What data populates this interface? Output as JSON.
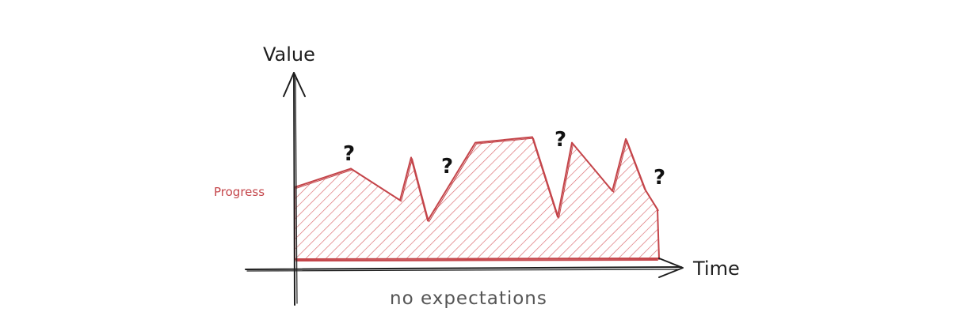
{
  "labels": {
    "y_axis": "Value",
    "x_axis": "Time",
    "series": "Progress",
    "caption": "no expectations",
    "question_mark": "?"
  },
  "colors": {
    "axis": "#1e1e1e",
    "series": "#c4454a",
    "hatch": "#d9666b"
  },
  "chart_data": {
    "type": "area",
    "x": [
      0,
      1,
      2,
      3,
      4,
      5,
      6,
      7,
      8,
      9,
      10,
      11,
      12
    ],
    "values": [
      40,
      50,
      33,
      56,
      22,
      64,
      67,
      24,
      64,
      38,
      66,
      39,
      28
    ],
    "xlabel": "Time",
    "ylabel": "Value",
    "series_name": "Progress",
    "annotations": [
      "?",
      "?",
      "?",
      "?"
    ],
    "grid": false
  }
}
